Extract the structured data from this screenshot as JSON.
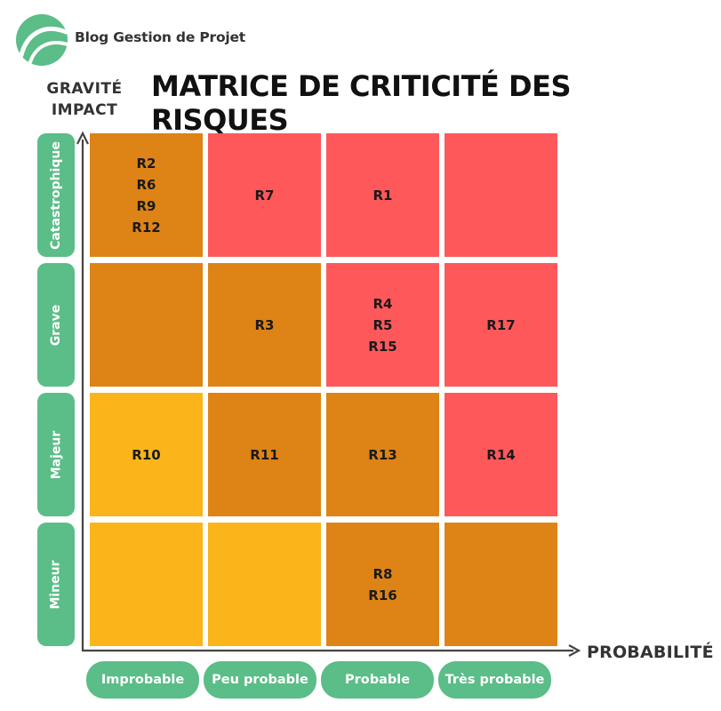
{
  "brand": {
    "name": "Blog Gestion de Projet"
  },
  "title": "MATRICE DE CRITICITÉ DES RISQUES",
  "y_axis": {
    "line1": "GRAVITÉ",
    "line2": "IMPACT"
  },
  "x_axis": {
    "label": "PROBABILITÉ"
  },
  "rows": [
    "Catastrophique",
    "Grave",
    "Majeur",
    "Mineur"
  ],
  "columns": [
    "Improbable",
    "Peu probable",
    "Probable",
    "Très probable"
  ],
  "colors": {
    "low": "#fbb419",
    "medium": "#de8315",
    "high": "#ff585a",
    "label_green": "#5bbd87"
  },
  "cells": [
    [
      {
        "level": "medium",
        "text": "R2\nR6\nR9\nR12"
      },
      {
        "level": "high",
        "text": "R7"
      },
      {
        "level": "high",
        "text": "R1"
      },
      {
        "level": "high",
        "text": ""
      }
    ],
    [
      {
        "level": "medium",
        "text": ""
      },
      {
        "level": "medium",
        "text": "R3"
      },
      {
        "level": "high",
        "text": "R4\nR5\nR15"
      },
      {
        "level": "high",
        "text": "R17"
      }
    ],
    [
      {
        "level": "low",
        "text": "R10"
      },
      {
        "level": "medium",
        "text": "R11"
      },
      {
        "level": "medium",
        "text": "R13"
      },
      {
        "level": "high",
        "text": "R14"
      }
    ],
    [
      {
        "level": "low",
        "text": ""
      },
      {
        "level": "low",
        "text": ""
      },
      {
        "level": "medium",
        "text": "R8\nR16"
      },
      {
        "level": "medium",
        "text": ""
      }
    ]
  ]
}
